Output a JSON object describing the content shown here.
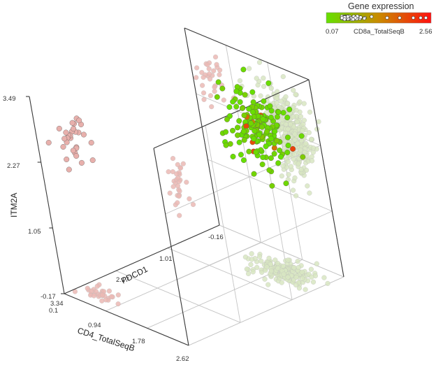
{
  "chart_data": {
    "type": "scatter3d",
    "title": "",
    "axes": {
      "x": {
        "label": "CD4_TotalSeqB",
        "ticks": [
          "0.1",
          "0.94",
          "1.78",
          "2.62"
        ],
        "range": [
          0.1,
          2.62
        ]
      },
      "y": {
        "label": "PDCD1",
        "ticks": [
          "3.34",
          "2.17",
          "1.01",
          "-0.16"
        ],
        "range": [
          -0.16,
          3.34
        ]
      },
      "z": {
        "label": "ITM2A",
        "ticks": [
          "-0.17",
          "1.05",
          "2.27",
          "3.49"
        ],
        "range": [
          -0.17,
          3.49
        ]
      }
    },
    "grid": true,
    "legend": {
      "title": "Gene expression",
      "variable": "CD8a_TotalSeqB",
      "min_label": "0.07",
      "max_label": "2.56",
      "min": 0.07,
      "max": 2.56,
      "colors": [
        "#66e000",
        "#c98a00",
        "#ff1010"
      ],
      "placement": "top-right"
    },
    "clusters": [
      {
        "name": "",
        "center": {
          "x": 1.85,
          "y": 0.35,
          "z": 2.55
        },
        "spread": {
          "x": 0.28,
          "y": 0.16,
          "z": 0.34
        },
        "count": 170,
        "expression": "low",
        "color": "#88e010"
      },
      {
        "name": "",
        "center": {
          "x": 0.45,
          "y": 2.95,
          "z": 2.65
        },
        "spread": {
          "x": 0.2,
          "y": 0.12,
          "z": 0.22
        },
        "count": 30,
        "expression": "high",
        "color": "#e8b0ac"
      }
    ],
    "shadow_colors": {
      "green": "#d8e6c2",
      "pink": "#ebb8b4"
    }
  }
}
